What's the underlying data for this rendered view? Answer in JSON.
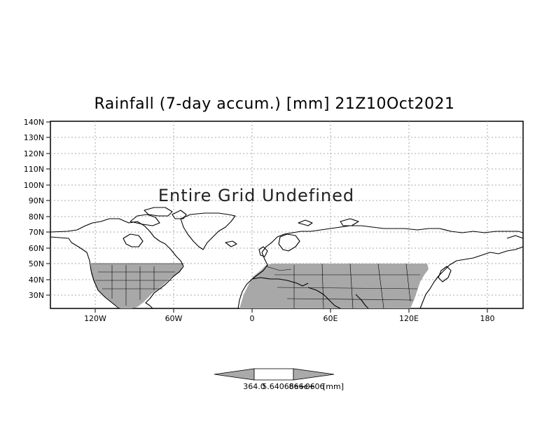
{
  "title": "Rainfall (7-day accum.) [mm] 21Z10Oct2021",
  "overlay": "Entire Grid Undefined",
  "lat_labels": [
    "140N",
    "130N",
    "120N",
    "110N",
    "100N",
    "90N",
    "80N",
    "70N",
    "60N",
    "50N",
    "40N",
    "30N"
  ],
  "lon_labels": [
    "120W",
    "60W",
    "0",
    "60E",
    "120E",
    "180"
  ],
  "colorbar": {
    "low_label": "364.0",
    "mid_label": "866e+06",
    "overlap_label": "5.64066e+06",
    "units": "[mm]"
  },
  "colors": {
    "land_fill": "#a8a8a8",
    "coast": "#000000",
    "grid": "#aaaaaa",
    "frame": "#000000",
    "colorbar_fill": "#aaaaaa"
  }
}
